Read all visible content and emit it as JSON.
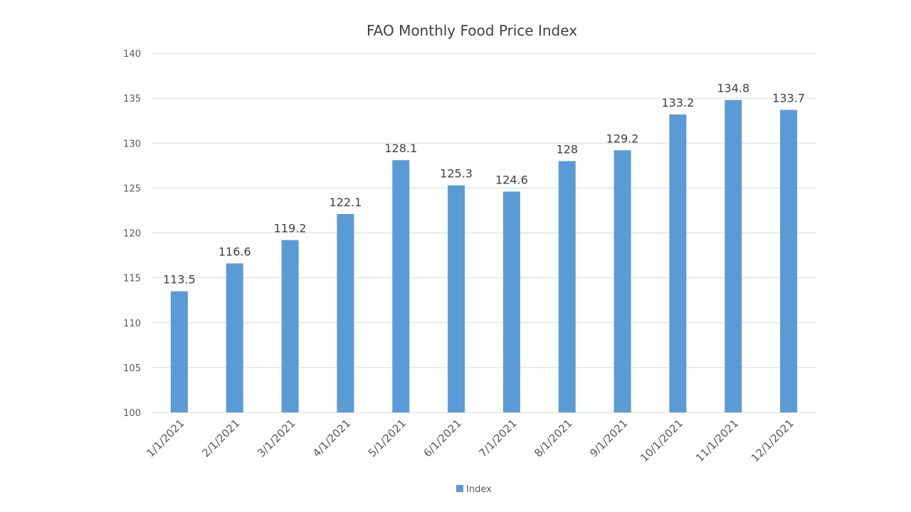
{
  "chart_data": {
    "type": "bar",
    "title": "FAO Monthly Food Price Index",
    "categories": [
      "1/1/2021",
      "2/1/2021",
      "3/1/2021",
      "4/1/2021",
      "5/1/2021",
      "6/1/2021",
      "7/1/2021",
      "8/1/2021",
      "9/1/2021",
      "10/1/2021",
      "11/1/2021",
      "12/1/2021"
    ],
    "series": [
      {
        "name": "Index",
        "values": [
          113.5,
          116.6,
          119.2,
          122.1,
          128.1,
          125.3,
          124.6,
          128,
          129.2,
          133.2,
          134.8,
          133.7
        ]
      }
    ],
    "ylim": [
      100,
      140
    ],
    "yticks": [
      100,
      105,
      110,
      115,
      120,
      125,
      130,
      135,
      140
    ],
    "grid": true,
    "legend": "bottom",
    "colors": {
      "bar": "#5b9bd5"
    }
  }
}
